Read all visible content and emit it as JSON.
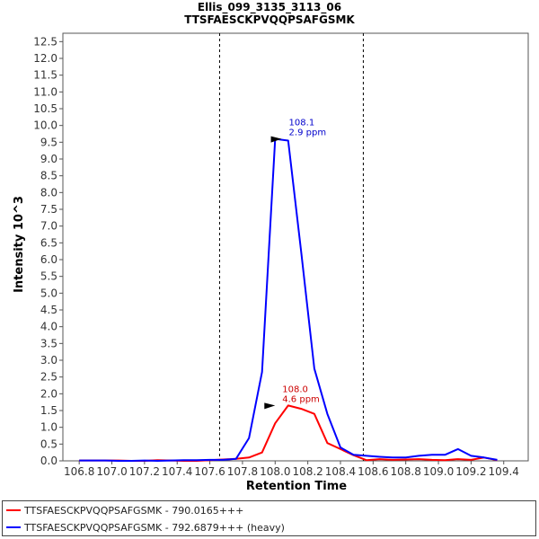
{
  "chart_data": {
    "type": "line",
    "title": "Ellis_099_3135_3113_06",
    "subtitle": "TTSFAESCKPVQQPSAFGSMK",
    "xlabel": "Retention Time",
    "ylabel": "Intensity 10^3",
    "xlim": [
      106.7,
      109.55
    ],
    "ylim": [
      0,
      12.75
    ],
    "x_ticks": [
      "106.8",
      "107.0",
      "107.2",
      "107.4",
      "107.6",
      "107.8",
      "108.0",
      "108.2",
      "108.4",
      "108.6",
      "108.8",
      "109.0",
      "109.2",
      "109.4"
    ],
    "y_ticks": [
      "0.0",
      "0.5",
      "1.0",
      "1.5",
      "2.0",
      "2.5",
      "3.0",
      "3.5",
      "4.0",
      "4.5",
      "5.0",
      "5.5",
      "6.0",
      "6.5",
      "7.0",
      "7.5",
      "8.0",
      "8.5",
      "9.0",
      "9.5",
      "10.0",
      "10.5",
      "11.0",
      "11.5",
      "12.0",
      "12.5"
    ],
    "vertical_lines": [
      107.66,
      108.54
    ],
    "grid": false,
    "legend_position": "bottom",
    "series": [
      {
        "name": "TTSFAESCKPVQQPSAFGSMK - 790.0165+++",
        "color": "#ff0000",
        "x": [
          106.8,
          106.88,
          106.96,
          107.04,
          107.12,
          107.2,
          107.28,
          107.36,
          107.44,
          107.52,
          107.6,
          107.68,
          107.76,
          107.84,
          107.92,
          108.0,
          108.08,
          108.16,
          108.24,
          108.32,
          108.4,
          108.48,
          108.56,
          108.64,
          108.72,
          108.8,
          108.88,
          108.96,
          109.04,
          109.12,
          109.2,
          109.28,
          109.36
        ],
        "values": [
          0.01,
          0.01,
          0.01,
          0.01,
          0.0,
          0.0,
          0.02,
          0.01,
          0.0,
          0.0,
          0.02,
          0.04,
          0.06,
          0.1,
          0.25,
          1.12,
          1.65,
          1.55,
          1.4,
          0.53,
          0.35,
          0.17,
          0.02,
          0.05,
          0.03,
          0.04,
          0.05,
          0.03,
          0.02,
          0.05,
          0.03,
          0.1,
          0.02
        ]
      },
      {
        "name": "TTSFAESCKPVQQPSAFGSMK - 792.6879+++ (heavy)",
        "color": "#0000ff",
        "x": [
          106.8,
          106.88,
          106.96,
          107.04,
          107.12,
          107.2,
          107.28,
          107.36,
          107.44,
          107.52,
          107.6,
          107.68,
          107.76,
          107.84,
          107.92,
          108.0,
          108.08,
          108.16,
          108.24,
          108.32,
          108.4,
          108.48,
          108.56,
          108.64,
          108.72,
          108.8,
          108.88,
          108.96,
          109.04,
          109.12,
          109.2,
          109.28,
          109.36
        ],
        "values": [
          0.01,
          0.01,
          0.01,
          0.0,
          0.0,
          0.01,
          0.0,
          0.01,
          0.02,
          0.02,
          0.03,
          0.03,
          0.06,
          0.68,
          2.65,
          9.6,
          9.55,
          6.2,
          2.75,
          1.4,
          0.4,
          0.18,
          0.15,
          0.12,
          0.1,
          0.1,
          0.15,
          0.18,
          0.18,
          0.35,
          0.15,
          0.1,
          0.03
        ]
      }
    ],
    "annotations": [
      {
        "series": 1,
        "x": 108.04,
        "y": 9.6,
        "rt": "108.1",
        "ppm": "2.9 ppm",
        "color": "#0000cc"
      },
      {
        "series": 0,
        "x": 108.0,
        "y": 1.65,
        "rt": "108.0",
        "ppm": "4.6 ppm",
        "color": "#cc0000"
      }
    ]
  },
  "legend": {
    "items": [
      {
        "label": "TTSFAESCKPVQQPSAFGSMK - 790.0165+++",
        "color": "#ff0000"
      },
      {
        "label": "TTSFAESCKPVQQPSAFGSMK - 792.6879+++ (heavy)",
        "color": "#0000ff"
      }
    ]
  }
}
